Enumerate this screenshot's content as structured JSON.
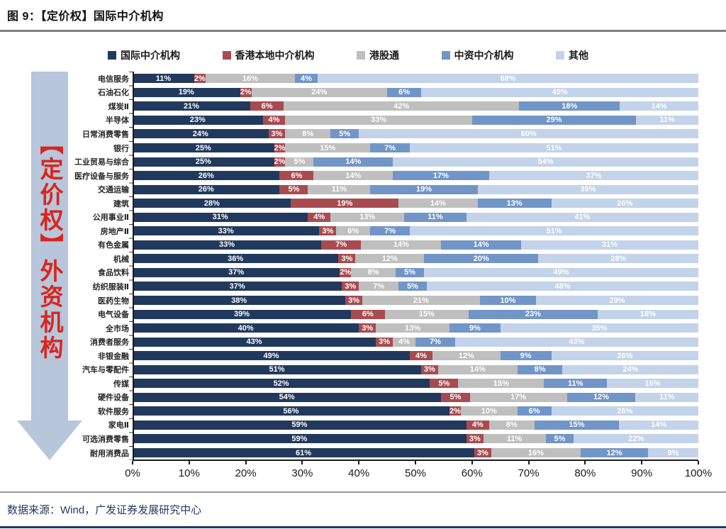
{
  "title": "图 9：【定价权】国际中介机构",
  "side_label": "【定价权】外资机构",
  "footer": {
    "source": "数据来源：Wind，广发证券发展研究中心"
  },
  "legend": [
    {
      "label": "国际中介机构",
      "color": "#21395c"
    },
    {
      "label": "香港本地中介机构",
      "color": "#a84b50"
    },
    {
      "label": "港股通",
      "color": "#bfbfbf"
    },
    {
      "label": "中资中介机构",
      "color": "#7295c7"
    },
    {
      "label": "其他",
      "color": "#c3d3e9"
    }
  ],
  "chart_data": {
    "type": "bar",
    "orientation": "horizontal",
    "stacked": true,
    "unit": "%",
    "title": "【定价权】国际中介机构",
    "xlabel": "",
    "ylabel": "",
    "xlim": [
      0,
      100
    ],
    "x_ticks": [
      "0%",
      "10%",
      "20%",
      "30%",
      "40%",
      "50%",
      "60%",
      "70%",
      "80%",
      "90%",
      "100%"
    ],
    "legend_position": "top",
    "grid": false,
    "series_names": [
      "国际中介机构",
      "香港本地中介机构",
      "港股通",
      "中资中介机构",
      "其他"
    ],
    "categories": [
      "电信服务",
      "石油石化",
      "煤炭Ⅱ",
      "半导体",
      "日常消费零售",
      "银行",
      "工业贸易与综合",
      "医疗设备与服务",
      "交通运输",
      "建筑",
      "公用事业Ⅱ",
      "房地产Ⅱ",
      "有色金属",
      "机械",
      "食品饮料",
      "纺织服装Ⅱ",
      "医药生物",
      "电气设备",
      "全市场",
      "消费者服务",
      "非银金融",
      "汽车与零配件",
      "传媒",
      "硬件设备",
      "软件服务",
      "家电Ⅱ",
      "可选消费零售",
      "耐用消费品"
    ],
    "rows": [
      [
        11,
        2,
        16,
        4,
        68
      ],
      [
        19,
        2,
        24,
        6,
        49
      ],
      [
        21,
        6,
        42,
        18,
        14
      ],
      [
        23,
        4,
        33,
        29,
        11
      ],
      [
        24,
        3,
        8,
        5,
        60
      ],
      [
        25,
        2,
        15,
        7,
        51
      ],
      [
        25,
        2,
        5,
        14,
        54
      ],
      [
        26,
        6,
        14,
        17,
        37
      ],
      [
        26,
        5,
        11,
        19,
        39
      ],
      [
        28,
        19,
        14,
        13,
        26
      ],
      [
        31,
        4,
        13,
        11,
        41
      ],
      [
        33,
        3,
        6,
        7,
        51
      ],
      [
        33,
        7,
        14,
        14,
        31
      ],
      [
        36,
        3,
        12,
        20,
        28
      ],
      [
        37,
        2,
        8,
        5,
        49
      ],
      [
        37,
        3,
        7,
        5,
        48
      ],
      [
        38,
        3,
        21,
        10,
        29
      ],
      [
        39,
        6,
        15,
        23,
        18
      ],
      [
        40,
        3,
        13,
        9,
        35
      ],
      [
        43,
        3,
        4,
        7,
        43
      ],
      [
        49,
        4,
        12,
        9,
        26
      ],
      [
        51,
        3,
        14,
        8,
        24
      ],
      [
        52,
        5,
        15,
        11,
        16
      ],
      [
        54,
        5,
        17,
        12,
        11
      ],
      [
        56,
        2,
        10,
        6,
        26
      ],
      [
        59,
        4,
        8,
        15,
        14
      ],
      [
        59,
        3,
        11,
        5,
        22
      ],
      [
        61,
        3,
        16,
        12,
        9
      ]
    ]
  }
}
